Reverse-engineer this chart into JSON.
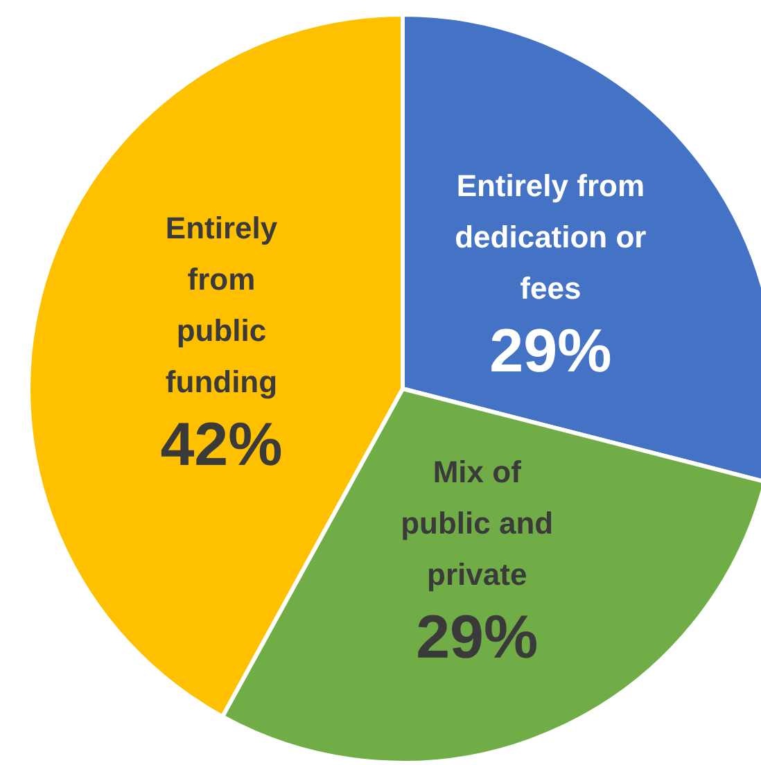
{
  "chart_data": {
    "type": "pie",
    "categories": [
      "Entirely from\ndedication or\nfees",
      "Mix of\npublic and\nprivate",
      "Entirely\nfrom\npublic\nfunding"
    ],
    "values": [
      29,
      29,
      42
    ],
    "colors": [
      "#4472c4",
      "#70ad47",
      "#ffc000"
    ],
    "value_labels": [
      "29%",
      "29%",
      "42%"
    ]
  }
}
